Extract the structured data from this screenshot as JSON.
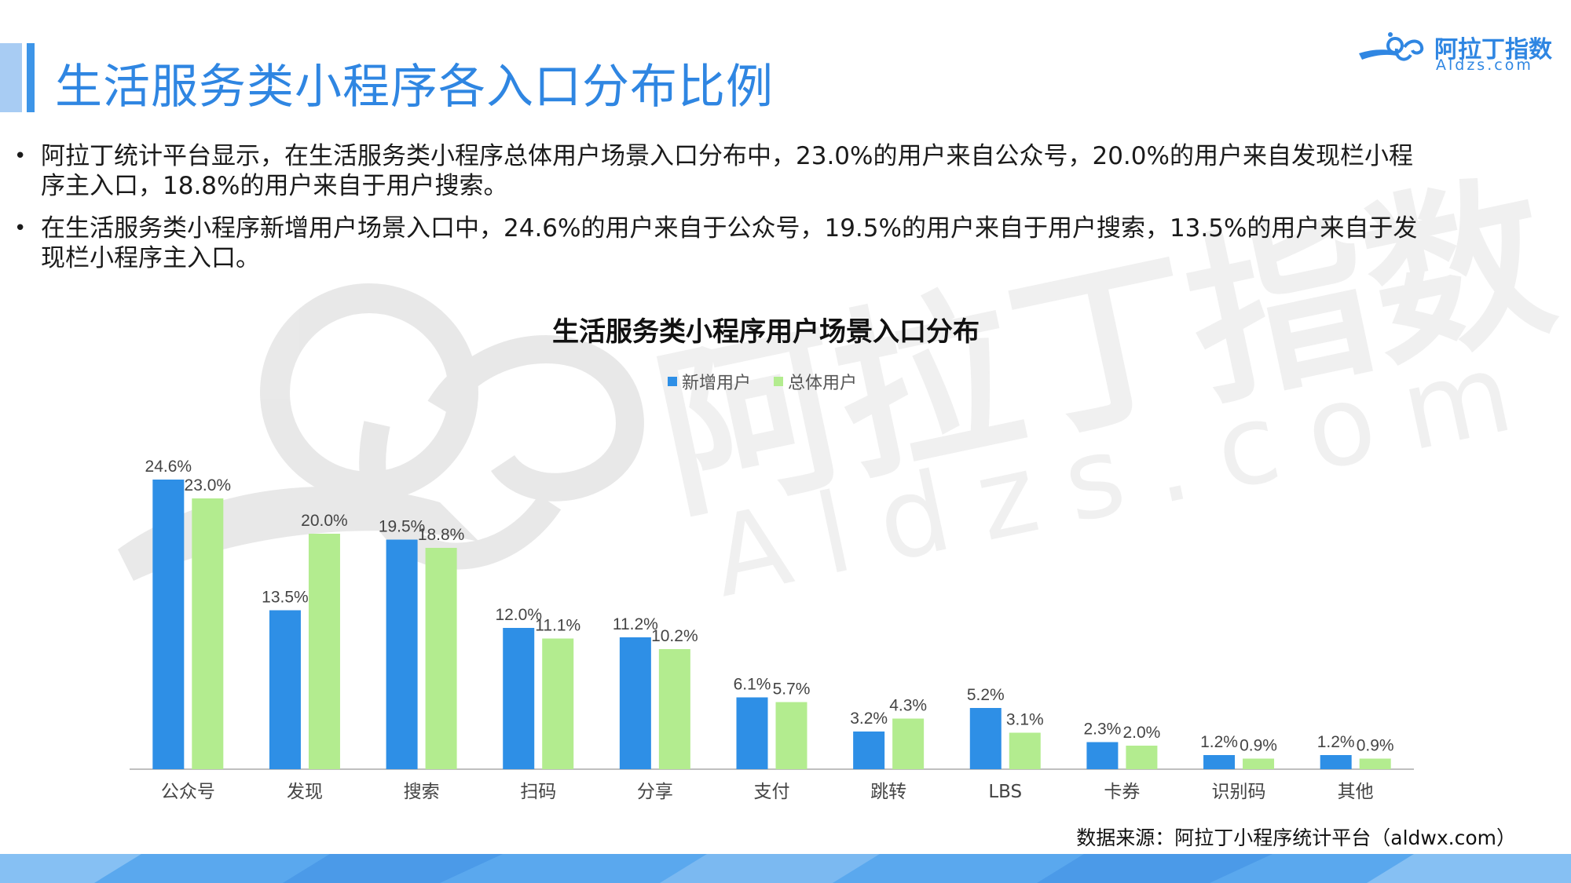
{
  "header": {
    "title": "生活服务类小程序各入口分布比例",
    "logo_cn": "阿拉丁指数",
    "logo_en": "Aldzs.com"
  },
  "bullets": [
    "阿拉丁统计平台显示，在生活服务类小程序总体用户场景入口分布中，23.0%的用户来自公众号，20.0%的用户来自发现栏小程序主入口，18.8%的用户来自于用户搜索。",
    "在生活服务类小程序新增用户场景入口中，24.6%的用户来自于公众号，19.5%的用户来自于用户搜索，13.5%的用户来自于发现栏小程序主入口。"
  ],
  "watermark": {
    "cn": "阿拉丁指数",
    "en": "Aldzs.com"
  },
  "source": "数据来源：阿拉丁小程序统计平台（aldwx.com）",
  "colors": {
    "new": "#2e8fe6",
    "total": "#b3ec8f",
    "title": "#2f86e2"
  },
  "chart_data": {
    "type": "bar",
    "title": "生活服务类小程序用户场景入口分布",
    "xlabel": "",
    "ylabel": "",
    "ylim": [
      0,
      26
    ],
    "grid": false,
    "legend_position": "top-center",
    "categories": [
      "公众号",
      "发现",
      "搜索",
      "扫码",
      "分享",
      "支付",
      "跳转",
      "LBS",
      "卡券",
      "识别码",
      "其他"
    ],
    "series": [
      {
        "name": "新增用户",
        "color": "#2e8fe6",
        "values": [
          24.6,
          13.5,
          19.5,
          12.0,
          11.2,
          6.1,
          3.2,
          5.2,
          2.3,
          1.2,
          1.2
        ]
      },
      {
        "name": "总体用户",
        "color": "#b3ec8f",
        "values": [
          23.0,
          20.0,
          18.8,
          11.1,
          10.2,
          5.7,
          4.3,
          3.1,
          2.0,
          0.9,
          0.9
        ]
      }
    ]
  }
}
